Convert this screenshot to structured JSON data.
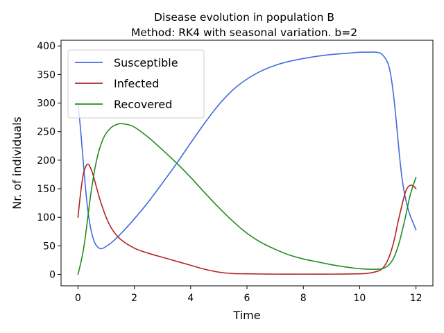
{
  "chart_data": {
    "type": "line",
    "title": "Disease evolution in population B",
    "subtitle": "Method: RK4 with seasonal variation. b=2",
    "xlabel": "Time",
    "ylabel": "Nr. of individuals",
    "xlim": [
      -0.6,
      12.6
    ],
    "ylim": [
      -20,
      410
    ],
    "xticks": [
      0,
      2,
      4,
      6,
      8,
      10,
      12
    ],
    "yticks": [
      0,
      50,
      100,
      150,
      200,
      250,
      300,
      350,
      400
    ],
    "grid": false,
    "legend_position": "top-left",
    "series": [
      {
        "name": "Susceptible",
        "color": "#4169e1",
        "x": [
          0,
          0.1,
          0.2,
          0.3,
          0.4,
          0.5,
          0.6,
          0.7,
          0.8,
          0.9,
          1.0,
          1.2,
          1.5,
          2.0,
          2.5,
          3.0,
          3.5,
          4.0,
          4.5,
          5.0,
          5.5,
          6.0,
          6.5,
          7.0,
          7.5,
          8.0,
          8.5,
          9.0,
          9.5,
          10.0,
          10.3,
          10.6,
          10.8,
          11.0,
          11.1,
          11.2,
          11.3,
          11.4,
          11.5,
          11.6,
          11.7,
          11.8,
          11.9,
          12.0
        ],
        "values": [
          300,
          250,
          190,
          135,
          95,
          70,
          55,
          48,
          45,
          46,
          49,
          56,
          70,
          97,
          127,
          160,
          194,
          230,
          265,
          297,
          323,
          342,
          356,
          366,
          373,
          378,
          382,
          385,
          387,
          389,
          389,
          389,
          385,
          370,
          350,
          315,
          268,
          215,
          170,
          140,
          118,
          102,
          90,
          78
        ]
      },
      {
        "name": "Infected",
        "color": "#b22222",
        "x": [
          0,
          0.1,
          0.2,
          0.3,
          0.35,
          0.4,
          0.5,
          0.6,
          0.7,
          0.8,
          1.0,
          1.2,
          1.5,
          2.0,
          2.5,
          3.0,
          3.5,
          4.0,
          4.5,
          5.0,
          5.5,
          6.0,
          7.0,
          8.0,
          9.0,
          10.0,
          10.3,
          10.6,
          10.8,
          11.0,
          11.2,
          11.4,
          11.6,
          11.7,
          11.8,
          11.9,
          12.0
        ],
        "values": [
          100,
          145,
          178,
          191,
          193,
          191,
          180,
          163,
          145,
          128,
          100,
          80,
          62,
          46,
          37,
          30,
          23,
          16,
          9,
          4,
          1.5,
          1,
          0.5,
          0.5,
          0.5,
          1,
          2,
          5,
          10,
          25,
          55,
          100,
          140,
          152,
          156,
          155,
          150
        ]
      },
      {
        "name": "Recovered",
        "color": "#228b22",
        "x": [
          0,
          0.1,
          0.2,
          0.3,
          0.4,
          0.5,
          0.6,
          0.7,
          0.8,
          0.9,
          1.0,
          1.2,
          1.4,
          1.5,
          1.7,
          2.0,
          2.5,
          3.0,
          3.5,
          4.0,
          4.5,
          5.0,
          5.5,
          6.0,
          6.5,
          7.0,
          7.5,
          8.0,
          8.5,
          9.0,
          9.5,
          10.0,
          10.5,
          10.8,
          11.0,
          11.2,
          11.4,
          11.6,
          11.8,
          12.0
        ],
        "values": [
          0,
          20,
          45,
          80,
          120,
          155,
          185,
          208,
          225,
          238,
          247,
          258,
          263,
          264,
          263,
          258,
          240,
          218,
          195,
          170,
          143,
          117,
          93,
          72,
          56,
          44,
          34,
          27,
          22,
          17,
          13,
          10,
          9,
          10,
          15,
          28,
          55,
          95,
          140,
          170
        ]
      }
    ]
  }
}
